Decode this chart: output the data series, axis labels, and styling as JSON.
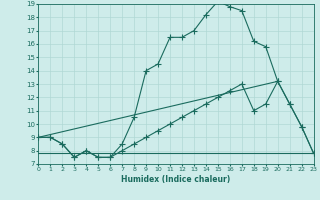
{
  "xlabel": "Humidex (Indice chaleur)",
  "background_color": "#ceecea",
  "line_color": "#1a6b5e",
  "grid_color": "#b0d8d5",
  "xmin": 0,
  "xmax": 23,
  "ymin": 7,
  "ymax": 19,
  "series": [
    {
      "x": [
        0,
        1,
        2,
        3,
        4,
        5,
        6,
        7,
        8,
        9,
        10,
        11,
        12,
        13,
        14,
        15,
        16,
        17,
        18,
        19,
        20,
        21,
        22,
        23
      ],
      "y": [
        9.0,
        9.0,
        8.5,
        7.5,
        8.0,
        7.5,
        7.5,
        8.5,
        10.5,
        14.0,
        14.5,
        16.5,
        16.5,
        17.0,
        18.2,
        19.2,
        18.8,
        18.5,
        16.2,
        15.8,
        13.2,
        11.5,
        9.8,
        7.8
      ]
    },
    {
      "x": [
        0,
        1,
        2,
        3,
        4,
        5,
        6,
        7,
        8,
        9,
        10,
        11,
        12,
        13,
        14,
        15,
        16,
        17,
        18,
        19,
        20,
        21,
        22,
        23
      ],
      "y": [
        9.0,
        9.0,
        8.5,
        7.5,
        8.0,
        7.5,
        7.5,
        8.0,
        8.5,
        9.0,
        9.5,
        10.0,
        10.5,
        11.0,
        11.5,
        12.0,
        12.5,
        13.0,
        11.0,
        11.5,
        13.2,
        11.5,
        9.8,
        7.8
      ]
    },
    {
      "x": [
        0,
        20
      ],
      "y": [
        9.0,
        13.2
      ]
    },
    {
      "x": [
        0,
        5,
        14,
        20,
        23
      ],
      "y": [
        7.8,
        7.8,
        7.8,
        7.8,
        7.8
      ]
    }
  ]
}
